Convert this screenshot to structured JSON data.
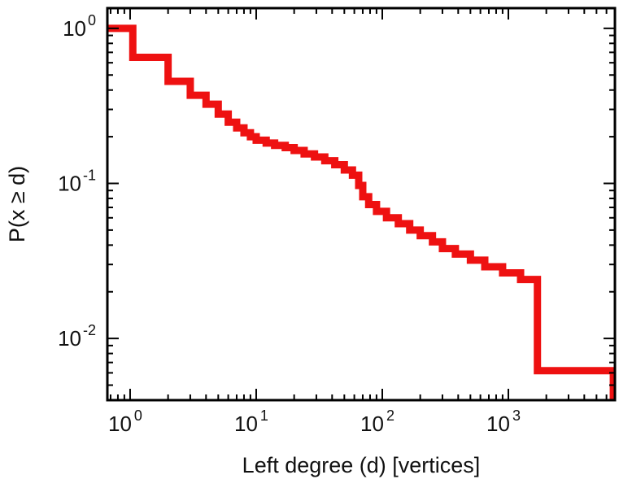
{
  "chart_data": {
    "type": "line",
    "subtype": "step-ccdf",
    "title": "",
    "xlabel": "Left degree (d) [vertices]",
    "ylabel": "P(x ≥ d)",
    "x_scale": "log",
    "y_scale": "log",
    "xlim": [
      0.66,
      7000
    ],
    "ylim": [
      0.004,
      1.35
    ],
    "grid": false,
    "legend": "none",
    "line_color": "#ee1111",
    "line_width": 9,
    "x_ticks": [
      {
        "value": 1,
        "base": "10",
        "exp": "0"
      },
      {
        "value": 10,
        "base": "10",
        "exp": "1"
      },
      {
        "value": 100,
        "base": "10",
        "exp": "2"
      },
      {
        "value": 1000,
        "base": "10",
        "exp": "3"
      }
    ],
    "y_ticks": [
      {
        "value": 1,
        "base": "10",
        "exp": "0"
      },
      {
        "value": 0.1,
        "base": "10",
        "exp": "-1"
      },
      {
        "value": 0.01,
        "base": "10",
        "exp": "-2"
      }
    ],
    "minor_ticks": "log-2-to-9",
    "points": [
      [
        0.66,
        1.0
      ],
      [
        1.05,
        0.65
      ],
      [
        2,
        0.455
      ],
      [
        3,
        0.37
      ],
      [
        4,
        0.324
      ],
      [
        5,
        0.28
      ],
      [
        6,
        0.248
      ],
      [
        7,
        0.228
      ],
      [
        8,
        0.212
      ],
      [
        9,
        0.2
      ],
      [
        10,
        0.19
      ],
      [
        12,
        0.182
      ],
      [
        14,
        0.176
      ],
      [
        17,
        0.17
      ],
      [
        20,
        0.163
      ],
      [
        24,
        0.155
      ],
      [
        29,
        0.148
      ],
      [
        35,
        0.14
      ],
      [
        42,
        0.132
      ],
      [
        50,
        0.122
      ],
      [
        58,
        0.113
      ],
      [
        65,
        0.097
      ],
      [
        70,
        0.082
      ],
      [
        78,
        0.073
      ],
      [
        90,
        0.066
      ],
      [
        108,
        0.06
      ],
      [
        134,
        0.055
      ],
      [
        165,
        0.05
      ],
      [
        200,
        0.046
      ],
      [
        250,
        0.042
      ],
      [
        300,
        0.038
      ],
      [
        380,
        0.035
      ],
      [
        500,
        0.032
      ],
      [
        650,
        0.029
      ],
      [
        900,
        0.0265
      ],
      [
        1250,
        0.024
      ],
      [
        1700,
        0.0062
      ],
      [
        6800,
        0.004
      ]
    ]
  }
}
